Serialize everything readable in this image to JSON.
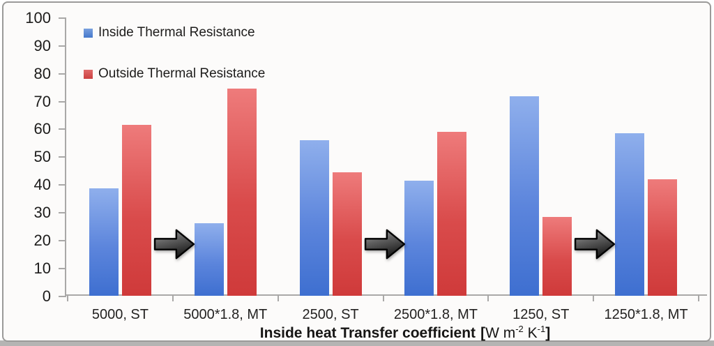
{
  "colors": {
    "inside_top": "#8fafec",
    "inside_mid": "#5c85dc",
    "inside_bottom": "#3e6fd0",
    "outside_top": "#ee7b7b",
    "outside_mid": "#d94b4b",
    "outside_bottom": "#cf3a3a",
    "inside_swatch_top": "#79a0de",
    "inside_swatch_bottom": "#4578cc",
    "outside_swatch_top": "#e06a6a",
    "outside_swatch_bottom": "#cc4040",
    "axis": "#a9a8a7",
    "text": "#1d1c1b",
    "frame_border": "#9b9a99",
    "background": "#fcfbfa",
    "arrow_light": "#a8a8a8",
    "arrow_mid": "#606060",
    "arrow_dark": "#1c1c1c",
    "arrow_outline": "#000000"
  },
  "chart_data": {
    "type": "bar",
    "title": "",
    "categories": [
      "5000, ST",
      "5000*1.8, MT",
      "2500, ST",
      "2500*1.8, MT",
      "1250, ST",
      "1250*1.8, MT"
    ],
    "series": [
      {
        "name": "Inside Thermal Resistance",
        "values": [
          38.6,
          26.0,
          55.8,
          41.3,
          71.7,
          58.4
        ]
      },
      {
        "name": "Outside Thermal Resistance",
        "values": [
          61.4,
          74.3,
          44.2,
          58.9,
          28.3,
          41.8
        ]
      }
    ],
    "xlabel": {
      "main": "Inside heat Transfer coefficient",
      "bracket_open": "[",
      "unit_open": "W m",
      "sup1": "-2",
      "unit_mid": " K",
      "sup2": "-1",
      "bracket_close": "]"
    },
    "ylabel": "",
    "ylim": [
      0,
      100
    ],
    "ytick_step": 10,
    "yticks": [
      0,
      10,
      20,
      30,
      40,
      50,
      60,
      70,
      80,
      90,
      100
    ],
    "grid": false,
    "legend_position": "top-left",
    "arrows_between_pairs": [
      [
        0,
        1
      ],
      [
        2,
        3
      ],
      [
        4,
        5
      ]
    ]
  }
}
